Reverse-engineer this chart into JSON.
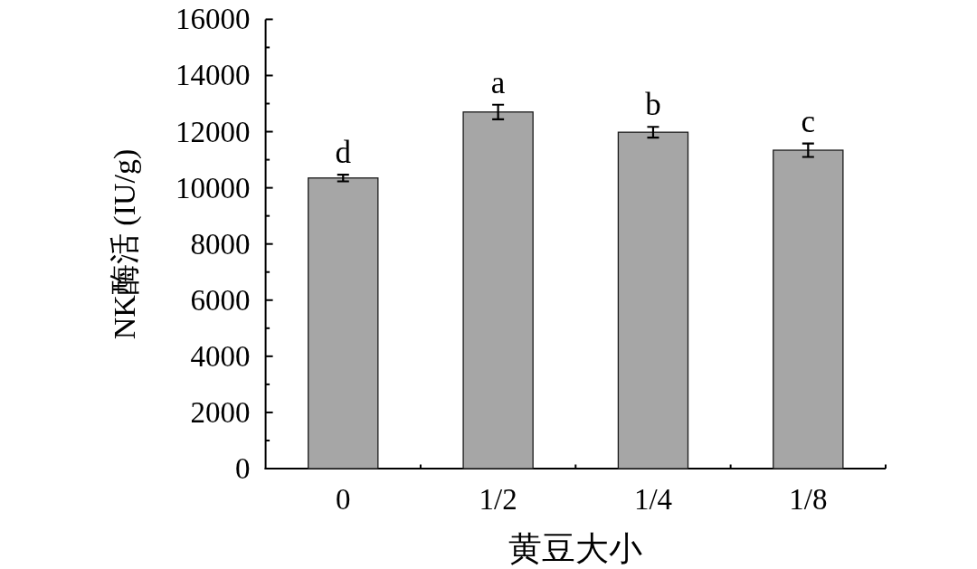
{
  "chart_data": {
    "type": "bar",
    "xlabel": "黄豆大小",
    "ylabel": "NK酶活 (IU/g)",
    "categories": [
      "0",
      "1/2",
      "1/4",
      "1/8"
    ],
    "values": [
      10350,
      12700,
      11980,
      11340
    ],
    "errors": [
      120,
      260,
      190,
      240
    ],
    "color": "#a6a6a6",
    "ylim": [
      0,
      16000
    ],
    "yticks": [
      0,
      2000,
      4000,
      6000,
      8000,
      10000,
      12000,
      14000,
      16000
    ],
    "annotations": [
      "d",
      "a",
      "b",
      "c"
    ]
  }
}
